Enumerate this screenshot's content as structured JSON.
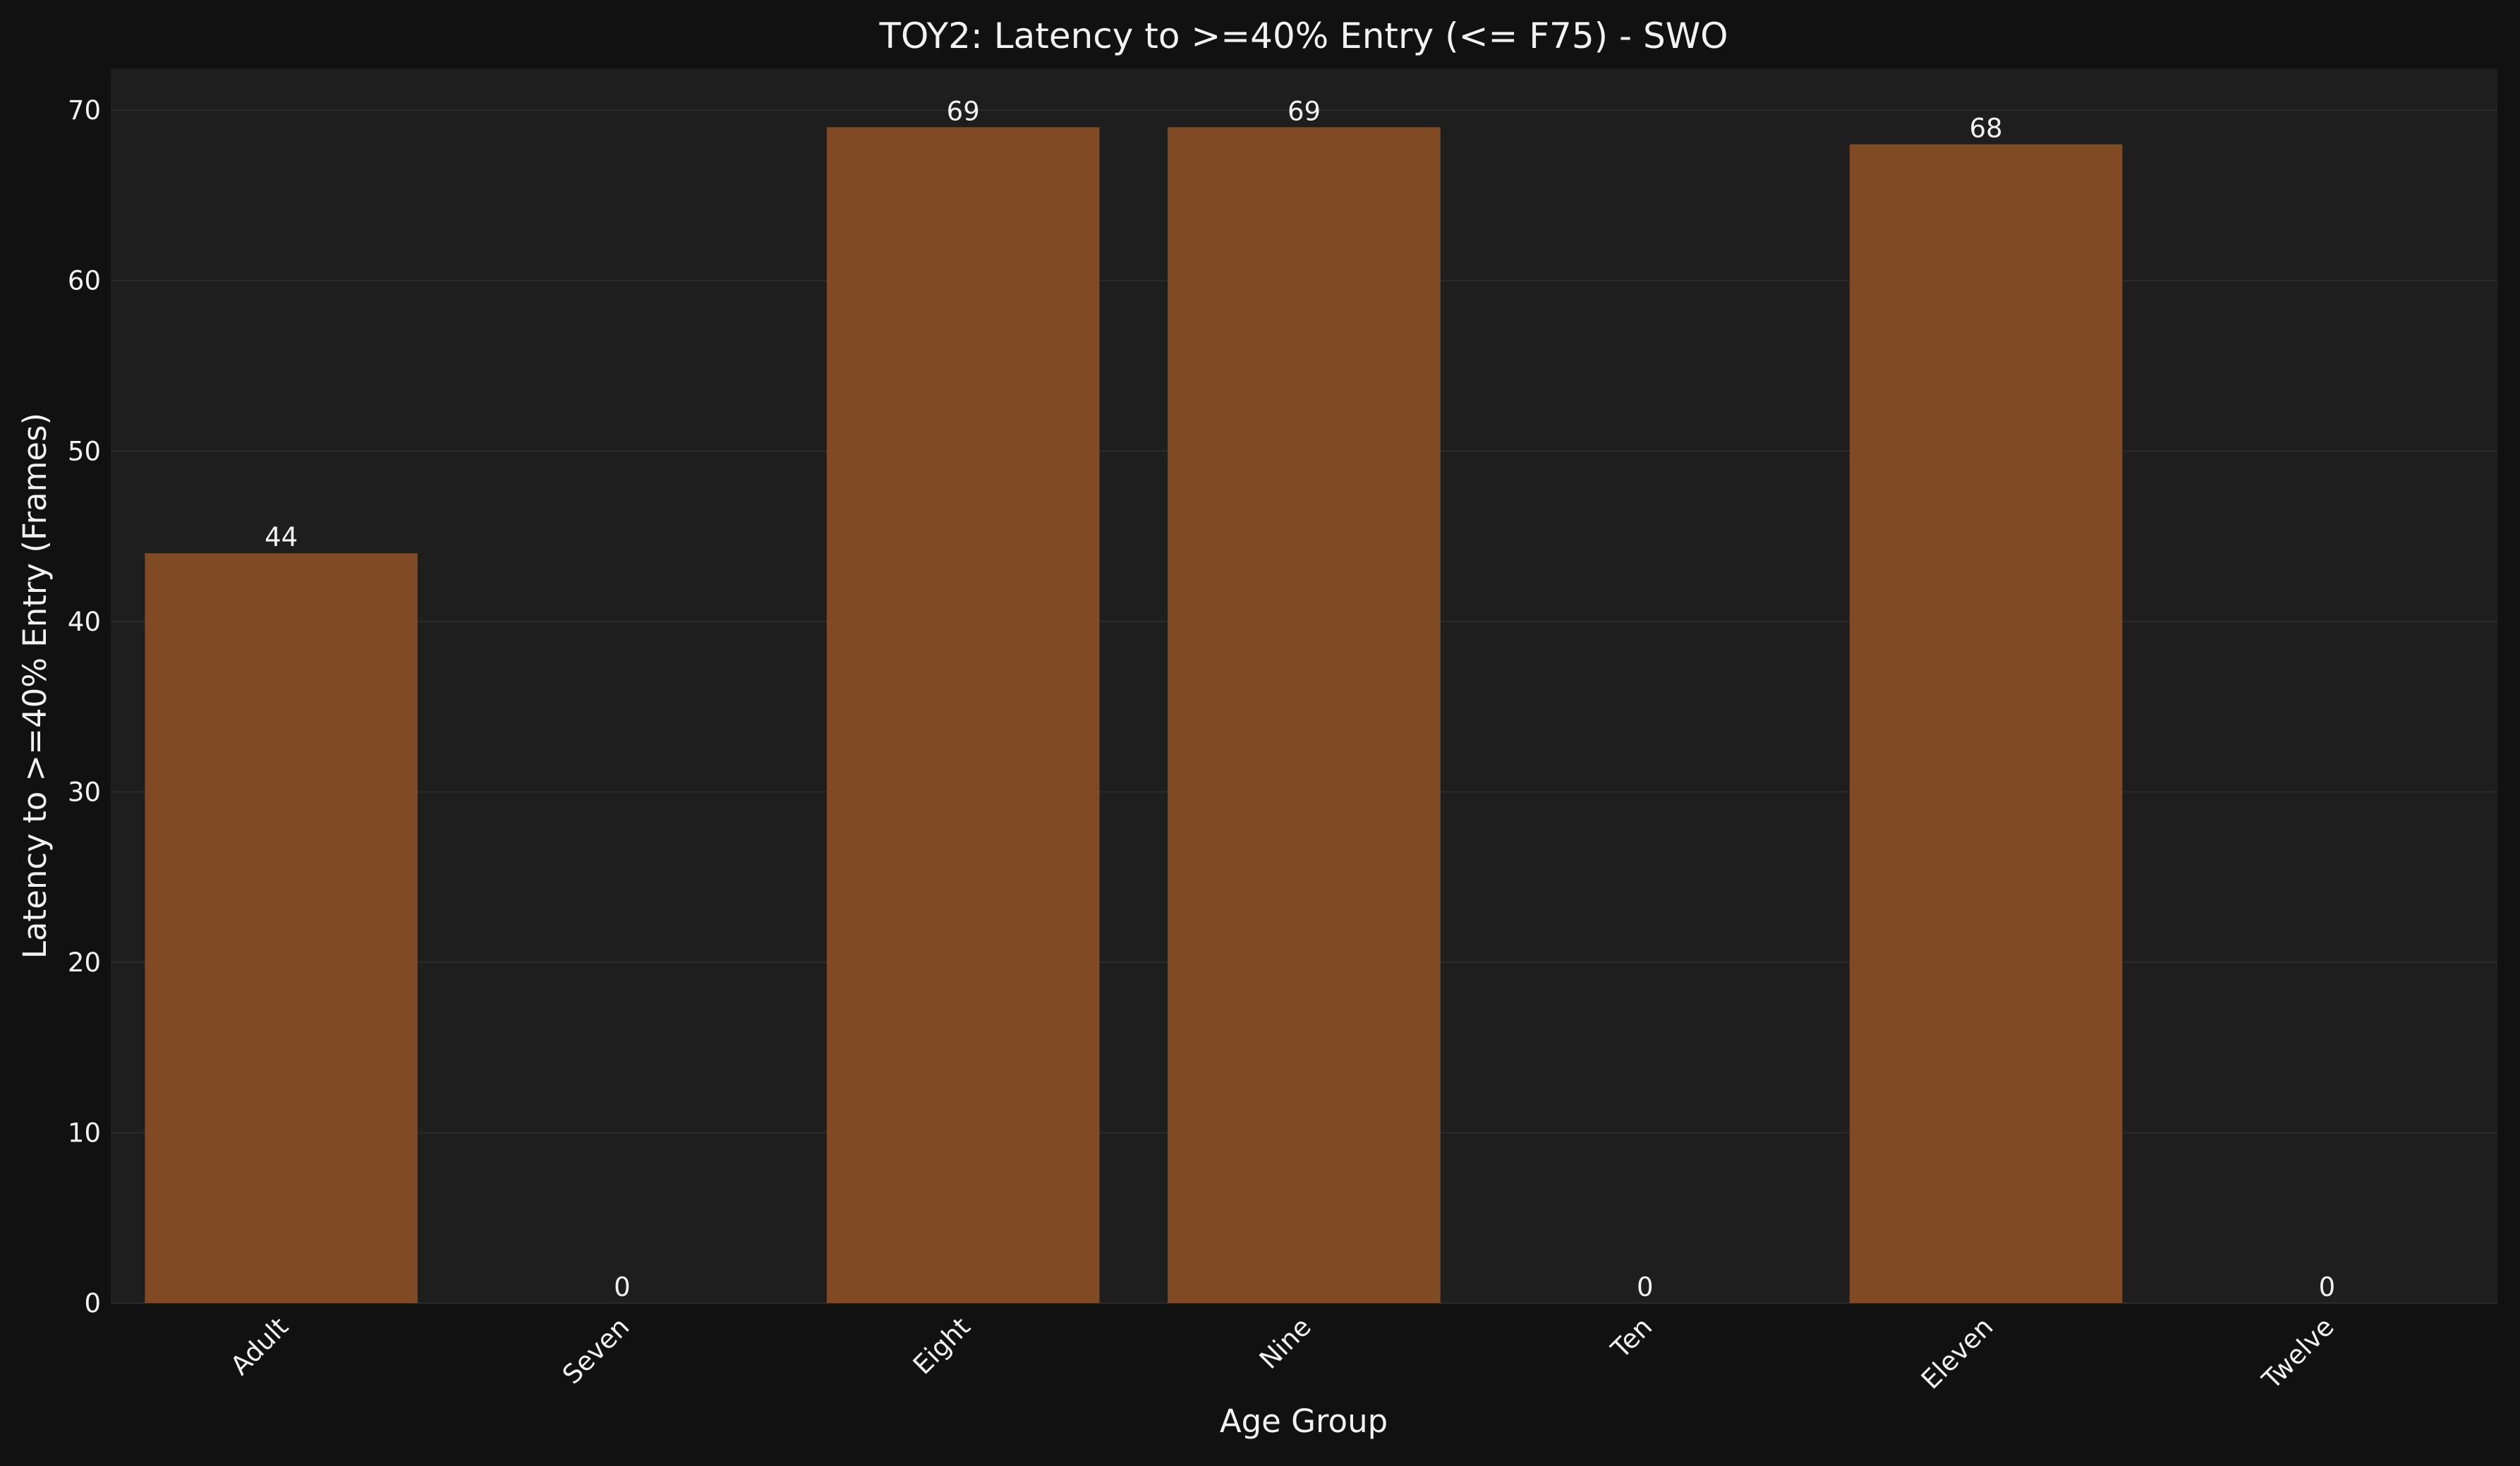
{
  "chart_data": {
    "type": "bar",
    "title": "TOY2: Latency to >=40% Entry (<= F75) - SWO",
    "xlabel": "Age Group",
    "ylabel": "Latency to >=40% Entry (Frames)",
    "categories": [
      "Adult",
      "Seven",
      "Eight",
      "Nine",
      "Ten",
      "Eleven",
      "Twelve"
    ],
    "values": [
      44,
      0,
      69,
      69,
      0,
      68,
      0
    ],
    "data_labels": [
      "44",
      "0",
      "69",
      "69",
      "0",
      "68",
      "0"
    ],
    "ylim": [
      0,
      72.45
    ],
    "yticks": [
      0,
      10,
      20,
      30,
      40,
      50,
      60,
      70
    ],
    "grid": "horizontal",
    "legend": "none",
    "colors": {
      "figure_background": "#111111",
      "plot_background": "#1e1e1e",
      "bar": "#7f4a24",
      "grid": "#2c2c2c",
      "text": "#f2f2f2"
    }
  }
}
